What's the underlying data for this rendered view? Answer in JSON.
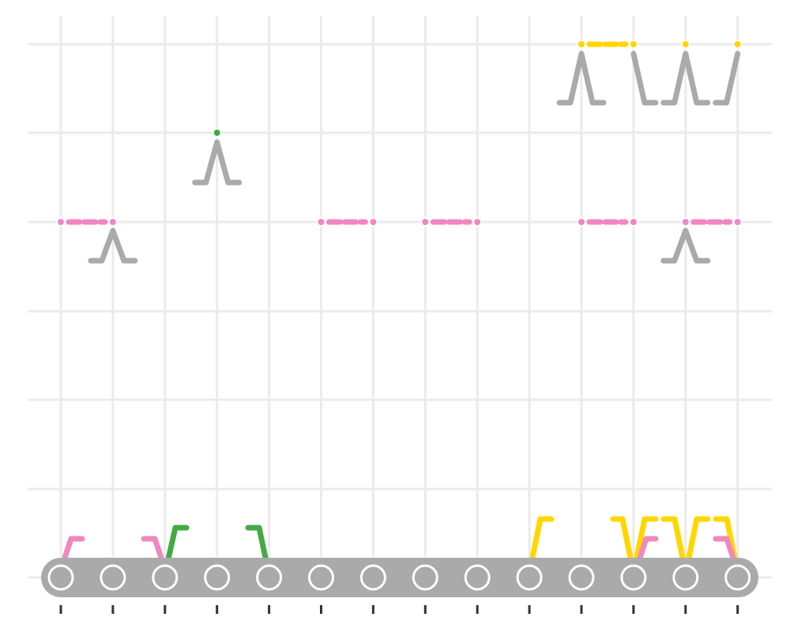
{
  "colors": {
    "pink": "#f088c0",
    "green": "#44aa44",
    "yellow": "#ffd700",
    "gray": "#aaaaaa",
    "grid": "#ebebeb",
    "tick": "#333333"
  }
}
